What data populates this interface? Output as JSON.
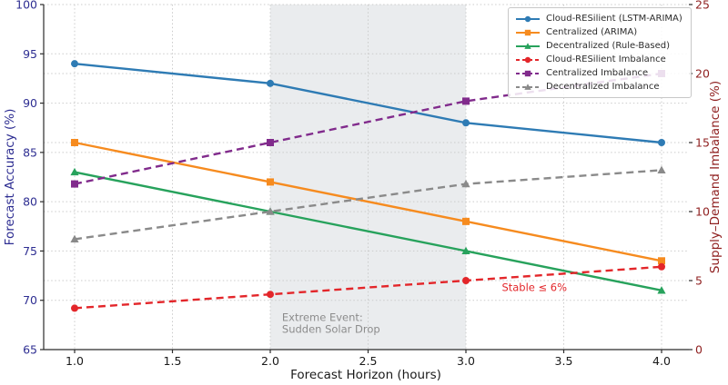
{
  "chart_data": {
    "type": "line",
    "title": "",
    "xlabel": "Forecast Horizon (hours)",
    "ylabel_left": "Forecast Accuracy (%)",
    "ylabel_right": "Supply–Demand Imbalance (%)",
    "x": [
      1.0,
      2.0,
      3.0,
      4.0
    ],
    "xlim": [
      1.0,
      4.0
    ],
    "xticks": [
      "1.0",
      "1.5",
      "2.0",
      "2.5",
      "3.0",
      "3.5",
      "4.0"
    ],
    "ylim_left": [
      65,
      100
    ],
    "yticks_left": [
      "65",
      "70",
      "75",
      "80",
      "85",
      "90",
      "95",
      "100"
    ],
    "ylim_right": [
      0,
      25
    ],
    "yticks_right": [
      "0",
      "5",
      "10",
      "15",
      "20",
      "25"
    ],
    "grid": "dotted, horizontal lines for both axes ticks, vertical at x ticks",
    "legend_position": "upper right",
    "series": [
      {
        "name": "Cloud-RESilient (LSTM-ARIMA)",
        "axis": "left",
        "values": [
          94,
          92,
          88,
          86
        ],
        "color": "#2e7bb4",
        "linestyle": "solid",
        "marker": "circle"
      },
      {
        "name": "Centralized (ARIMA)",
        "axis": "left",
        "values": [
          86,
          82,
          78,
          74
        ],
        "color": "#f68b1f",
        "linestyle": "solid",
        "marker": "square"
      },
      {
        "name": "Decentralized (Rule-Based)",
        "axis": "left",
        "values": [
          83,
          79,
          75,
          71
        ],
        "color": "#27a25c",
        "linestyle": "solid",
        "marker": "triangle"
      },
      {
        "name": "Cloud-RESilient Imbalance",
        "axis": "right",
        "values": [
          3,
          4,
          5,
          6
        ],
        "color": "#e3262a",
        "linestyle": "dashed",
        "marker": "circle"
      },
      {
        "name": "Centralized Imbalance",
        "axis": "right",
        "values": [
          12,
          15,
          18,
          20
        ],
        "color": "#812b8c",
        "linestyle": "dashed",
        "marker": "square"
      },
      {
        "name": "Decentralized Imbalance",
        "axis": "right",
        "values": [
          8,
          10,
          12,
          13
        ],
        "color": "#8a8a8a",
        "linestyle": "dashed",
        "marker": "triangle"
      }
    ],
    "shaded_region": {
      "x0": 2.0,
      "x1": 3.0,
      "color": "#eaecee",
      "label_line1": "Extreme Event:",
      "label_line2": "Sudden Solar Drop",
      "label_color": "#8c8c8c",
      "label_x": 2.06,
      "label_y1": 67.9,
      "label_y2": 66.7
    },
    "annotations": [
      {
        "text": "Stable ≤ 6%",
        "x": 3.35,
        "y_left": 71.3,
        "color": "#e3262a"
      }
    ],
    "axis_colors": {
      "left": "#2e2e92",
      "right": "#8f1f1f",
      "x": "#1a1a1a"
    },
    "grid_color": "#cbcbcb",
    "spine_color": "#2b2b2b"
  }
}
